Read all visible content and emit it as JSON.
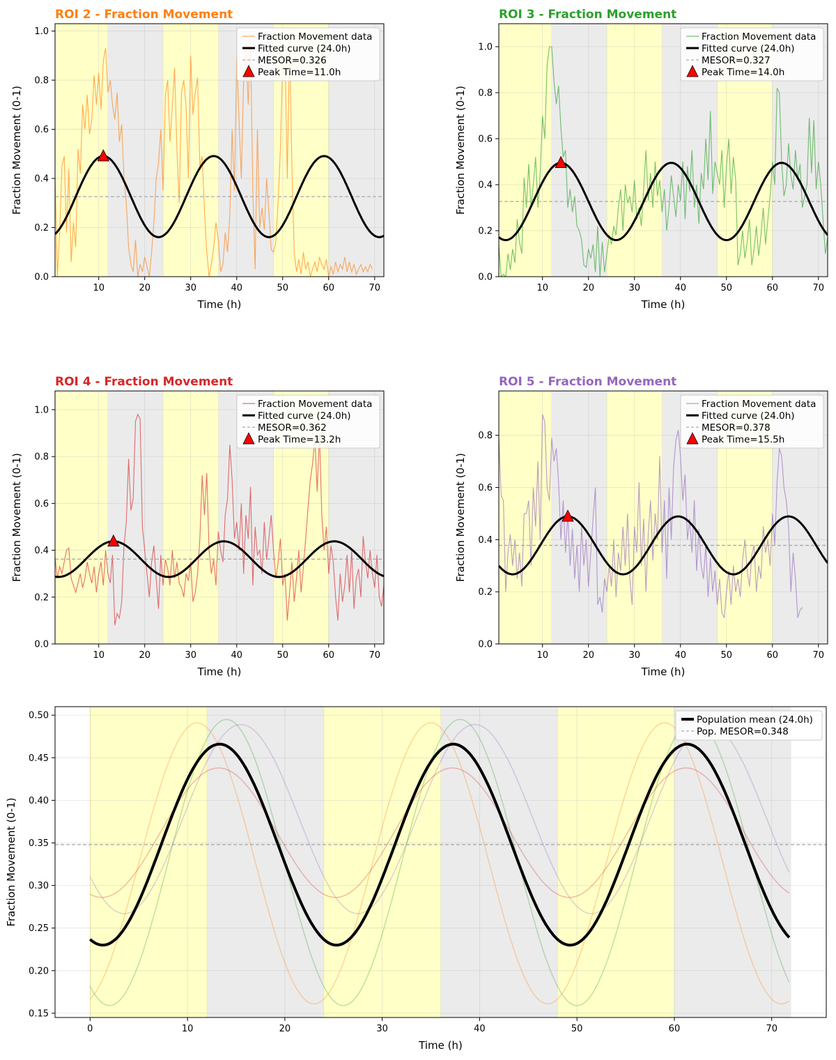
{
  "chart_data": [
    {
      "type": "line",
      "title": "ROI 2 - Fraction Movement",
      "title_color": "#ff7f0e",
      "color": "#ff7f0e",
      "xlabel": "Time (h)",
      "ylabel": "Fraction Movement (0-1)",
      "xlim": [
        0.5,
        72
      ],
      "ylim": [
        0,
        1.03
      ],
      "xticks": [
        10,
        20,
        30,
        40,
        50,
        60,
        70
      ],
      "yticks": [
        0.0,
        0.2,
        0.4,
        0.6,
        0.8,
        1.0
      ],
      "grid": true,
      "legend_position": "top-right",
      "legend": [
        "Fraction Movement data",
        "Fitted curve (24.0h)",
        "MESOR=0.326",
        "Peak Time=11.0h"
      ],
      "mesor": 0.326,
      "amplitude": 0.165,
      "period": 24,
      "peak_time": 11.0,
      "raw": {
        "x_start": 0.5,
        "x_step": 0.5,
        "y": [
          0.41,
          0.0,
          0.18,
          0.45,
          0.49,
          0.18,
          0.44,
          0.06,
          0.22,
          0.12,
          0.52,
          0.42,
          0.7,
          0.6,
          0.74,
          0.58,
          0.64,
          0.82,
          0.7,
          0.83,
          0.68,
          0.88,
          0.93,
          0.75,
          0.8,
          0.7,
          0.64,
          0.75,
          0.55,
          0.62,
          0.4,
          0.3,
          0.12,
          0.05,
          0.02,
          0.15,
          0.0,
          0.05,
          0.02,
          0.08,
          0.04,
          0.0,
          0.1,
          0.22,
          0.4,
          0.46,
          0.6,
          0.35,
          0.74,
          0.8,
          0.55,
          0.69,
          0.85,
          0.52,
          0.3,
          0.75,
          0.8,
          0.69,
          0.4,
          0.9,
          0.66,
          0.75,
          0.81,
          0.45,
          0.49,
          0.27,
          0.1,
          0.0,
          0.05,
          0.12,
          0.22,
          0.15,
          0.02,
          0.05,
          0.18,
          0.1,
          0.25,
          0.6,
          0.35,
          0.9,
          0.64,
          0.4,
          0.8,
          0.92,
          0.7,
          0.95,
          0.35,
          0.03,
          0.6,
          0.2,
          0.28,
          0.19,
          0.4,
          0.26,
          0.11,
          0.1,
          0.14,
          0.3,
          0.52,
          0.88,
          0.91,
          0.4,
          0.95,
          0.45,
          0.1,
          0.02,
          0.07,
          0.01,
          0.1,
          0.03,
          0.06,
          0.0,
          0.03,
          0.06,
          0.02,
          0.08,
          0.05,
          0.03,
          0.07,
          0.0,
          0.04,
          0.01,
          0.06,
          0.02,
          0.05,
          0.03,
          0.08,
          0.02,
          0.06,
          0.02,
          0.05,
          0.01,
          0.03,
          0.05,
          0.02,
          0.04,
          0.02,
          0.05,
          0.03
        ]
      }
    },
    {
      "type": "line",
      "title": "ROI 3 - Fraction Movement",
      "title_color": "#2ca02c",
      "color": "#2ca02c",
      "xlabel": "Time (h)",
      "ylabel": "Fraction Movement (0-1)",
      "xlim": [
        0.5,
        72
      ],
      "ylim": [
        0,
        1.1
      ],
      "xticks": [
        10,
        20,
        30,
        40,
        50,
        60,
        70
      ],
      "yticks": [
        0.0,
        0.2,
        0.4,
        0.6,
        0.8,
        1.0
      ],
      "grid": true,
      "legend_position": "top-right",
      "legend": [
        "Fraction Movement data",
        "Fitted curve (24.0h)",
        "MESOR=0.327",
        "Peak Time=14.0h"
      ],
      "mesor": 0.327,
      "amplitude": 0.168,
      "period": 24,
      "peak_time": 14.0,
      "raw": {
        "x_start": 0.5,
        "x_step": 0.5,
        "y": [
          0.14,
          0.0,
          0.01,
          0.0,
          0.1,
          0.03,
          0.12,
          0.06,
          0.25,
          0.15,
          0.1,
          0.43,
          0.3,
          0.49,
          0.3,
          0.4,
          0.52,
          0.3,
          0.45,
          0.7,
          0.6,
          0.92,
          1.0,
          1.0,
          0.85,
          0.75,
          0.83,
          0.65,
          0.52,
          0.55,
          0.3,
          0.38,
          0.28,
          0.35,
          0.22,
          0.2,
          0.16,
          0.05,
          0.04,
          0.12,
          0.08,
          0.14,
          0.02,
          0.22,
          0.0,
          0.15,
          0.02,
          0.1,
          0.18,
          0.14,
          0.22,
          0.18,
          0.3,
          0.38,
          0.2,
          0.4,
          0.32,
          0.35,
          0.28,
          0.42,
          0.25,
          0.3,
          0.22,
          0.38,
          0.55,
          0.33,
          0.45,
          0.3,
          0.5,
          0.35,
          0.42,
          0.28,
          0.38,
          0.2,
          0.3,
          0.44,
          0.35,
          0.26,
          0.4,
          0.33,
          0.5,
          0.25,
          0.48,
          0.37,
          0.55,
          0.3,
          0.4,
          0.23,
          0.45,
          0.38,
          0.6,
          0.42,
          0.72,
          0.36,
          0.5,
          0.45,
          0.4,
          0.55,
          0.3,
          0.48,
          0.6,
          0.36,
          0.52,
          0.42,
          0.05,
          0.1,
          0.2,
          0.08,
          0.15,
          0.25,
          0.05,
          0.12,
          0.22,
          0.09,
          0.18,
          0.3,
          0.14,
          0.25,
          0.35,
          0.5,
          0.4,
          0.82,
          0.8,
          0.5,
          0.35,
          0.4,
          0.58,
          0.44,
          0.38,
          0.55,
          0.42,
          0.49,
          0.3,
          0.35,
          0.4,
          0.69,
          0.45,
          0.68,
          0.38,
          0.5,
          0.4,
          0.25,
          0.1,
          0.17,
          0.14,
          0.2,
          0.12,
          0.15,
          0.22,
          0.13
        ]
      }
    },
    {
      "type": "line",
      "title": "ROI 4 - Fraction Movement",
      "title_color": "#d62728",
      "color": "#d62728",
      "xlabel": "Time (h)",
      "ylabel": "Fraction Movement (0-1)",
      "xlim": [
        0.5,
        72
      ],
      "ylim": [
        0,
        1.08
      ],
      "xticks": [
        10,
        20,
        30,
        40,
        50,
        60,
        70
      ],
      "yticks": [
        0.0,
        0.2,
        0.4,
        0.6,
        0.8,
        1.0
      ],
      "grid": true,
      "legend_position": "top-right",
      "legend": [
        "Fraction Movement data",
        "Fitted curve (24.0h)",
        "MESOR=0.362",
        "Peak Time=13.2h"
      ],
      "mesor": 0.362,
      "amplitude": 0.076,
      "period": 24,
      "peak_time": 13.2,
      "raw": {
        "x_start": 0.5,
        "x_step": 0.5,
        "y": [
          0.37,
          0.28,
          0.33,
          0.3,
          0.35,
          0.4,
          0.41,
          0.28,
          0.25,
          0.22,
          0.26,
          0.3,
          0.24,
          0.28,
          0.35,
          0.3,
          0.26,
          0.33,
          0.22,
          0.3,
          0.35,
          0.25,
          0.4,
          0.3,
          0.26,
          0.38,
          0.08,
          0.13,
          0.11,
          0.18,
          0.42,
          0.52,
          0.79,
          0.57,
          0.62,
          0.95,
          0.98,
          0.96,
          0.5,
          0.4,
          0.3,
          0.2,
          0.35,
          0.42,
          0.28,
          0.15,
          0.38,
          0.25,
          0.36,
          0.32,
          0.25,
          0.4,
          0.28,
          0.35,
          0.26,
          0.24,
          0.2,
          0.3,
          0.27,
          0.35,
          0.18,
          0.22,
          0.3,
          0.45,
          0.72,
          0.55,
          0.73,
          0.4,
          0.3,
          0.36,
          0.25,
          0.48,
          0.4,
          0.35,
          0.55,
          0.62,
          0.85,
          0.7,
          0.45,
          0.52,
          0.4,
          0.6,
          0.3,
          0.55,
          0.45,
          0.67,
          0.25,
          0.5,
          0.38,
          0.4,
          0.3,
          0.52,
          0.36,
          0.45,
          0.55,
          0.4,
          0.28,
          0.35,
          0.45,
          0.25,
          0.3,
          0.1,
          0.22,
          0.35,
          0.18,
          0.28,
          0.4,
          0.22,
          0.33,
          0.45,
          0.58,
          0.7,
          0.77,
          0.88,
          0.65,
          0.9,
          0.55,
          0.4,
          0.5,
          0.3,
          0.42,
          0.35,
          0.2,
          0.1,
          0.3,
          0.18,
          0.25,
          0.38,
          0.22,
          0.4,
          0.15,
          0.28,
          0.32,
          0.2,
          0.46,
          0.35,
          0.28,
          0.4,
          0.3,
          0.24,
          0.38,
          0.2,
          0.16,
          0.25,
          0.18,
          0.22,
          0.15,
          0.1
        ]
      }
    },
    {
      "type": "line",
      "title": "ROI 5 - Fraction Movement",
      "title_color": "#9467bd",
      "color": "#9467bd",
      "xlabel": "Time (h)",
      "ylabel": "Fraction Movement (0-1)",
      "xlim": [
        0.5,
        72
      ],
      "ylim": [
        0,
        0.97
      ],
      "xticks": [
        10,
        20,
        30,
        40,
        50,
        60,
        70
      ],
      "yticks": [
        0.0,
        0.2,
        0.4,
        0.6,
        0.8
      ],
      "grid": true,
      "legend_position": "top-right",
      "legend": [
        "Fraction Movement data",
        "Fitted curve (24.0h)",
        "MESOR=0.378",
        "Peak Time=15.5h"
      ],
      "mesor": 0.378,
      "amplitude": 0.111,
      "period": 24,
      "peak_time": 15.5,
      "raw": {
        "x_start": 0.5,
        "x_step": 0.5,
        "y": [
          0.8,
          0.57,
          0.55,
          0.2,
          0.35,
          0.42,
          0.3,
          0.4,
          0.25,
          0.35,
          0.22,
          0.5,
          0.5,
          0.55,
          0.3,
          0.6,
          0.45,
          0.7,
          0.4,
          0.88,
          0.85,
          0.6,
          0.55,
          0.79,
          0.7,
          0.75,
          0.62,
          0.4,
          0.55,
          0.35,
          0.5,
          0.3,
          0.44,
          0.25,
          0.38,
          0.2,
          0.45,
          0.3,
          0.4,
          0.22,
          0.35,
          0.48,
          0.6,
          0.15,
          0.18,
          0.12,
          0.25,
          0.2,
          0.3,
          0.22,
          0.4,
          0.18,
          0.35,
          0.28,
          0.45,
          0.3,
          0.5,
          0.25,
          0.15,
          0.45,
          0.35,
          0.62,
          0.3,
          0.48,
          0.2,
          0.42,
          0.55,
          0.32,
          0.5,
          0.4,
          0.72,
          0.35,
          0.55,
          0.25,
          0.6,
          0.4,
          0.68,
          0.78,
          0.82,
          0.72,
          0.55,
          0.65,
          0.4,
          0.48,
          0.35,
          0.55,
          0.28,
          0.44,
          0.3,
          0.25,
          0.38,
          0.18,
          0.33,
          0.2,
          0.28,
          0.15,
          0.25,
          0.12,
          0.1,
          0.2,
          0.28,
          0.15,
          0.3,
          0.2,
          0.25,
          0.18,
          0.32,
          0.4,
          0.28,
          0.22,
          0.34,
          0.38,
          0.2,
          0.3,
          0.25,
          0.45,
          0.35,
          0.4,
          0.3,
          0.5,
          0.38,
          0.62,
          0.75,
          0.72,
          0.6,
          0.55,
          0.45,
          0.2,
          0.35,
          0.25,
          0.1,
          0.13,
          0.14
        ]
      }
    },
    {
      "type": "line",
      "title": "",
      "xlabel": "Time (h)",
      "ylabel": "Fraction Movement (0-1)",
      "xlim": [
        -3.6,
        75.6
      ],
      "ylim": [
        0.145,
        0.51
      ],
      "xticks": [
        0,
        10,
        20,
        30,
        40,
        50,
        60,
        70
      ],
      "yticks": [
        0.15,
        0.2,
        0.25,
        0.3,
        0.35,
        0.4,
        0.45,
        0.5
      ],
      "grid": true,
      "legend_position": "top-right",
      "legend": [
        "Population mean (24.0h)",
        "Pop. MESOR=0.348"
      ],
      "series": [
        {
          "name": "",
          "color": "#ff7f0e",
          "mesor": 0.326,
          "amplitude": 0.165,
          "period": 24,
          "peak_time": 11.0
        },
        {
          "name": "",
          "color": "#2ca02c",
          "mesor": 0.327,
          "amplitude": 0.168,
          "period": 24,
          "peak_time": 14.0
        },
        {
          "name": "",
          "color": "#d62728",
          "mesor": 0.362,
          "amplitude": 0.076,
          "period": 24,
          "peak_time": 13.2
        },
        {
          "name": "",
          "color": "#9467bd",
          "mesor": 0.378,
          "amplitude": 0.111,
          "period": 24,
          "peak_time": 15.5
        },
        {
          "name": "Population mean (24.0h)",
          "color": "#000000",
          "mesor": 0.348,
          "amplitude": 0.118,
          "period": 24,
          "peak_time": 13.3
        }
      ],
      "mesor": 0.348,
      "x_range": [
        0,
        71.8
      ]
    }
  ],
  "light_dark_bands": [
    {
      "start": 0,
      "end": 12,
      "phase": "light",
      "color": "#ffffc8"
    },
    {
      "start": 12,
      "end": 24,
      "phase": "dark",
      "color": "#ebebeb"
    },
    {
      "start": 24,
      "end": 36,
      "phase": "light",
      "color": "#ffffc8"
    },
    {
      "start": 36,
      "end": 48,
      "phase": "dark",
      "color": "#ebebeb"
    },
    {
      "start": 48,
      "end": 60,
      "phase": "light",
      "color": "#ffffc8"
    },
    {
      "start": 60,
      "end": 72,
      "phase": "dark",
      "color": "#ebebeb"
    }
  ]
}
